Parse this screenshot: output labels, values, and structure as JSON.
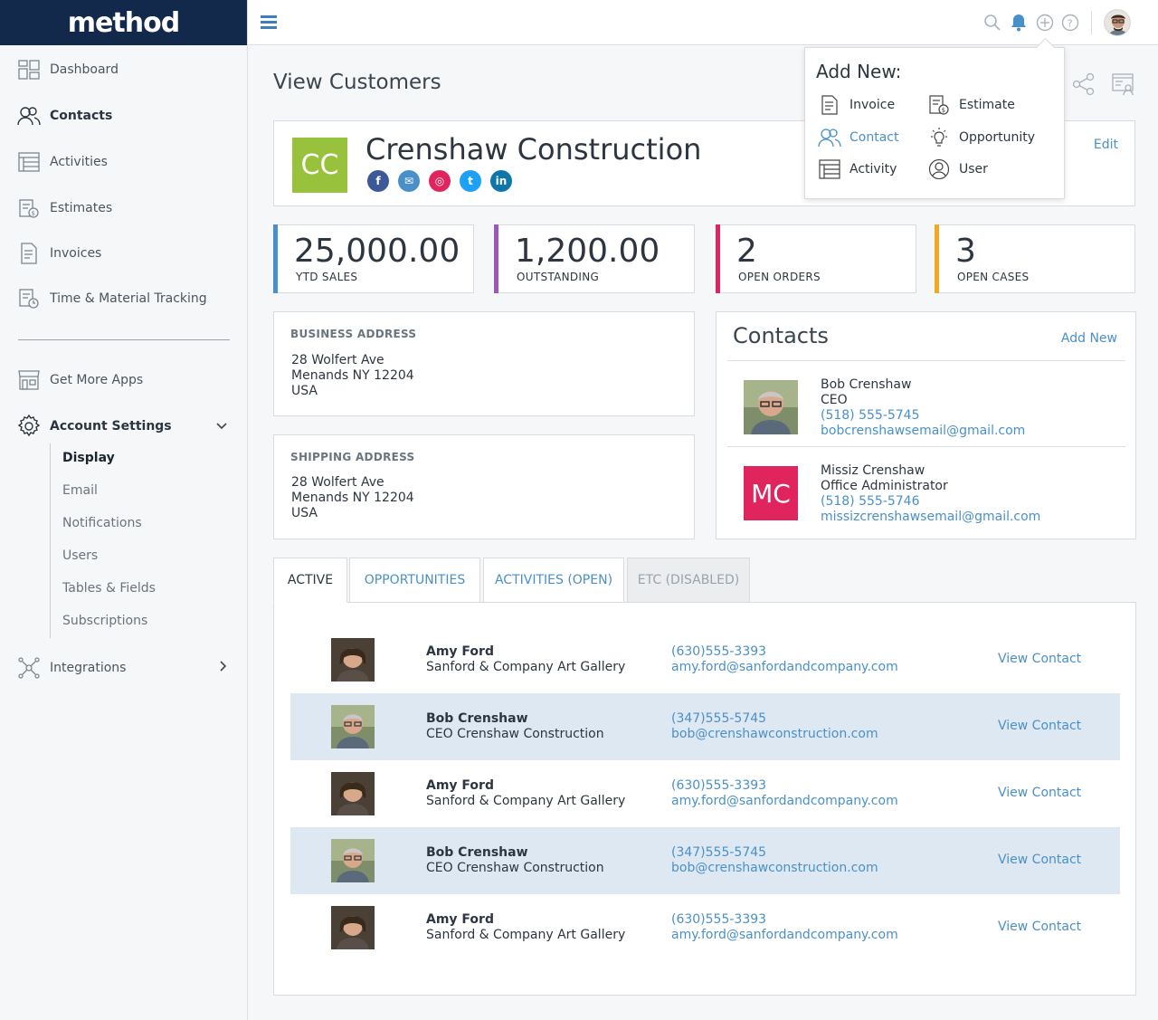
{
  "app": {
    "logo": "method"
  },
  "sidebar": {
    "items": [
      {
        "label": "Dashboard",
        "icon": "dashboard-icon"
      },
      {
        "label": "Contacts",
        "icon": "contacts-icon"
      },
      {
        "label": "Activities",
        "icon": "activities-icon"
      },
      {
        "label": "Estimates",
        "icon": "estimates-icon"
      },
      {
        "label": "Invoices",
        "icon": "invoices-icon"
      },
      {
        "label": "Time & Material Tracking",
        "icon": "time-material-icon"
      },
      {
        "label": "Get More Apps",
        "icon": "store-icon"
      },
      {
        "label": "Account Settings",
        "icon": "gear-icon"
      },
      {
        "label": "Integrations",
        "icon": "integrations-icon"
      }
    ],
    "subitems": [
      "Display",
      "Email",
      "Notifications",
      "Users",
      "Tables & Fields",
      "Subscriptions"
    ]
  },
  "page": {
    "title": "View Customers"
  },
  "customer": {
    "initials": "CC",
    "name": "Crenshaw Construction",
    "edit": "Edit",
    "socials": [
      "f",
      "✉",
      "◎",
      "t",
      "in"
    ]
  },
  "stats": [
    {
      "value": "25,000.00",
      "label": "YTD SALES",
      "color": "#4a90c8"
    },
    {
      "value": "1,200.00",
      "label": "OUTSTANDING",
      "color": "#9b59b6"
    },
    {
      "value": "2",
      "label": "OPEN ORDERS",
      "color": "#e0245e"
    },
    {
      "value": "3",
      "label": "OPEN CASES",
      "color": "#f5a623"
    }
  ],
  "business_address": {
    "title": "BUSINESS ADDRESS",
    "lines": [
      "28 Wolfert Ave",
      "Menands NY 12204",
      "USA"
    ]
  },
  "shipping_address": {
    "title": "SHIPPING ADDRESS",
    "lines": [
      "28 Wolfert Ave",
      "Menands NY 12204",
      "USA"
    ]
  },
  "contacts": {
    "title": "Contacts",
    "add_new": "Add New",
    "people": [
      {
        "name": "Bob Crenshaw",
        "role": "CEO",
        "phone": "(518) 555-5745",
        "email": "bobcrenshawsemail@gmail.com"
      },
      {
        "name": "Missiz Crenshaw",
        "role": "Office Administrator",
        "phone": "(518) 555-5746",
        "email": "missizcrenshawsemail@gmail.com",
        "initials": "MC"
      }
    ]
  },
  "tabs": [
    {
      "label": "ACTIVE"
    },
    {
      "label": "OPPORTUNITIES"
    },
    {
      "label": "ACTIVITIES (OPEN)"
    },
    {
      "label": "ETC (DISABLED)"
    }
  ],
  "list": [
    {
      "name": "Amy Ford",
      "company": "Sanford & Company Art Gallery",
      "phone": "(630)555-3393",
      "email": "amy.ford@sanfordandcompany.com",
      "action": "View Contact"
    },
    {
      "name": "Bob Crenshaw",
      "company": "CEO Crenshaw Construction",
      "phone": "(347)555-5745",
      "email": "bob@crenshawconstruction.com",
      "action": "View Contact"
    },
    {
      "name": "Amy Ford",
      "company": "Sanford & Company Art Gallery",
      "phone": "(630)555-3393",
      "email": "amy.ford@sanfordandcompany.com",
      "action": "View Contact"
    },
    {
      "name": "Bob Crenshaw",
      "company": "CEO Crenshaw Construction",
      "phone": "(347)555-5745",
      "email": "bob@crenshawconstruction.com",
      "action": "View Contact"
    },
    {
      "name": "Amy Ford",
      "company": "Sanford & Company Art Gallery",
      "phone": "(630)555-3393",
      "email": "amy.ford@sanfordandcompany.com",
      "action": "View Contact"
    }
  ],
  "add_new_menu": {
    "title": "Add New:",
    "items": [
      {
        "label": "Invoice",
        "icon": "invoice-icon"
      },
      {
        "label": "Estimate",
        "icon": "estimate-icon"
      },
      {
        "label": "Contact",
        "icon": "contact-icon"
      },
      {
        "label": "Opportunity",
        "icon": "lightbulb-icon"
      },
      {
        "label": "Activity",
        "icon": "activity-icon"
      },
      {
        "label": "User",
        "icon": "user-icon"
      }
    ]
  },
  "colors": {
    "brand": "#13294b",
    "accent": "#4a90c8",
    "badge_cc": "#98c23c",
    "badge_mc": "#e0245e"
  }
}
